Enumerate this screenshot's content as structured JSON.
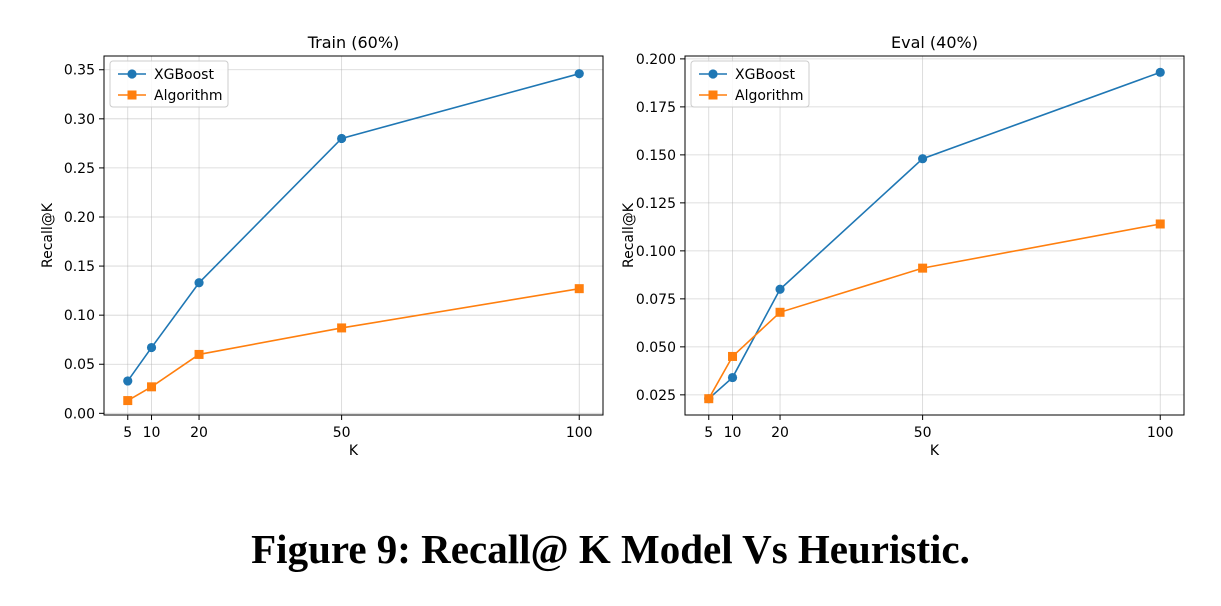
{
  "caption": "Figure 9: Recall@ K Model Vs Heuristic.",
  "chart_data": [
    {
      "type": "line",
      "title": "Train (60%)",
      "xlabel": "K",
      "ylabel": "Recall@K",
      "x": [
        5,
        10,
        20,
        50,
        100
      ],
      "xticks": [
        5,
        10,
        20,
        50,
        100
      ],
      "xlim": [
        0,
        105
      ],
      "ylim": [
        -0.0017,
        0.364
      ],
      "yticks": [
        0.0,
        0.05,
        0.1,
        0.15,
        0.2,
        0.25,
        0.3,
        0.35
      ],
      "ytick_labels": [
        "0.00",
        "0.05",
        "0.10",
        "0.15",
        "0.20",
        "0.25",
        "0.30",
        "0.35"
      ],
      "grid": true,
      "legend": "top-left",
      "series": [
        {
          "name": "XGBoost",
          "values": [
            0.033,
            0.067,
            0.133,
            0.28,
            0.346
          ],
          "color": "#1f77b4",
          "marker": "circle"
        },
        {
          "name": "Algorithm",
          "values": [
            0.013,
            0.027,
            0.06,
            0.087,
            0.127
          ],
          "color": "#ff7f0e",
          "marker": "square"
        }
      ]
    },
    {
      "type": "line",
      "title": "Eval (40%)",
      "xlabel": "K",
      "ylabel": "Recall@K",
      "x": [
        5,
        10,
        20,
        50,
        100
      ],
      "xticks": [
        5,
        10,
        20,
        50,
        100
      ],
      "xlim": [
        0,
        105
      ],
      "ylim": [
        0.0145,
        0.2015
      ],
      "yticks": [
        0.025,
        0.05,
        0.075,
        0.1,
        0.125,
        0.15,
        0.175,
        0.2
      ],
      "ytick_labels": [
        "0.025",
        "0.050",
        "0.075",
        "0.100",
        "0.125",
        "0.150",
        "0.175",
        "0.200"
      ],
      "grid": true,
      "legend": "top-left",
      "series": [
        {
          "name": "XGBoost",
          "values": [
            0.023,
            0.034,
            0.08,
            0.148,
            0.193
          ],
          "color": "#1f77b4",
          "marker": "circle"
        },
        {
          "name": "Algorithm",
          "values": [
            0.023,
            0.045,
            0.068,
            0.091,
            0.114
          ],
          "color": "#ff7f0e",
          "marker": "square"
        }
      ]
    }
  ]
}
